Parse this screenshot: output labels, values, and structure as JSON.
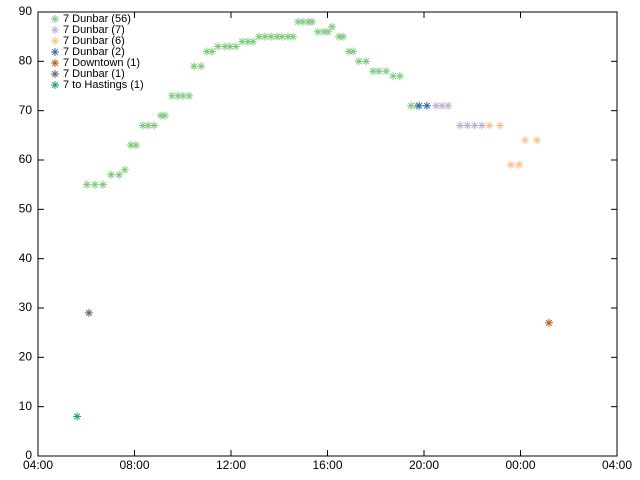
{
  "chart_data": {
    "type": "scatter",
    "xlim": [
      4,
      28
    ],
    "ylim": [
      0,
      90
    ],
    "xticks": [
      {
        "value": 4,
        "label": "04:00"
      },
      {
        "value": 8,
        "label": "08:00"
      },
      {
        "value": 12,
        "label": "12:00"
      },
      {
        "value": 16,
        "label": "16:00"
      },
      {
        "value": 20,
        "label": "20:00"
      },
      {
        "value": 24,
        "label": "00:00"
      },
      {
        "value": 28,
        "label": "04:00"
      }
    ],
    "yticks": [
      0,
      10,
      20,
      30,
      40,
      50,
      60,
      70,
      80,
      90
    ],
    "legend": "top-left",
    "series": [
      {
        "name": "7 Dunbar (56)",
        "color": "#7fc97f",
        "x": [
          6.03,
          6.36,
          6.69,
          7.03,
          7.36,
          7.6,
          7.85,
          8.06,
          8.35,
          8.56,
          8.81,
          9.1,
          9.26,
          9.55,
          9.8,
          10.01,
          10.26,
          10.47,
          10.76,
          11.0,
          11.21,
          11.46,
          11.75,
          11.96,
          12.2,
          12.46,
          12.7,
          12.91,
          13.16,
          13.41,
          13.66,
          13.91,
          14.11,
          14.36,
          14.57,
          14.78,
          14.98,
          15.2,
          15.36,
          15.6,
          15.85,
          16.02,
          16.19,
          16.48,
          16.64,
          16.89,
          17.06,
          17.3,
          17.6,
          17.89,
          18.13,
          18.43,
          18.72,
          19.0,
          19.46,
          19.7
        ],
        "values": [
          55,
          55,
          55,
          57,
          57,
          58,
          63,
          63,
          67,
          67,
          67,
          69,
          69,
          73,
          73,
          73,
          73,
          79,
          79,
          82,
          82,
          83,
          83,
          83,
          83,
          84,
          84,
          84,
          85,
          85,
          85,
          85,
          85,
          85,
          85,
          88,
          88,
          88,
          88,
          86,
          86,
          86,
          87,
          85,
          85,
          82,
          82,
          80,
          80,
          78,
          78,
          78,
          77,
          77,
          71,
          71
        ]
      },
      {
        "name": "7 Dunbar (7)",
        "color": "#beaed4",
        "x": [
          20.5,
          20.75,
          21.0,
          21.5,
          21.8,
          22.1,
          22.4
        ],
        "values": [
          71,
          71,
          71,
          67,
          67,
          67,
          67
        ]
      },
      {
        "name": "7 Dunbar (6)",
        "color": "#fdc086",
        "x": [
          22.7,
          23.15,
          23.6,
          23.94,
          24.19,
          24.68
        ],
        "values": [
          67,
          67,
          59,
          59,
          64,
          64
        ]
      },
      {
        "name": "7 Dunbar (2)",
        "color": "#386cb0",
        "x": [
          19.8,
          20.12
        ],
        "values": [
          71,
          71
        ]
      },
      {
        "name": "7 Downtown (1)",
        "color": "#bf5b17",
        "x": [
          25.18
        ],
        "values": [
          27
        ]
      },
      {
        "name": "7 Dunbar (1)",
        "color": "#666666",
        "x": [
          6.11
        ],
        "values": [
          29
        ]
      },
      {
        "name": "7 to Hastings (1)",
        "color": "#1b9e77",
        "x": [
          5.62
        ],
        "values": [
          8
        ]
      }
    ]
  }
}
